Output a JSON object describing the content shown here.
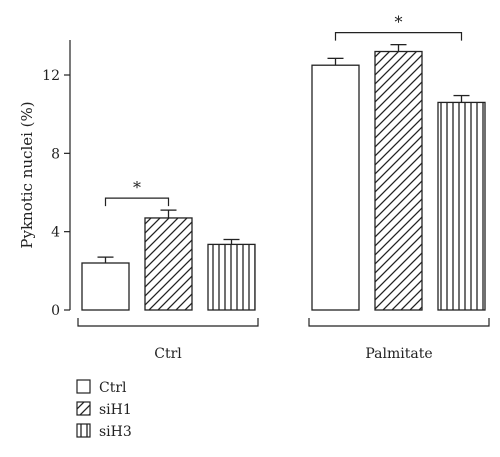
{
  "chart_data": {
    "type": "bar",
    "ylabel": "Pyknotic nuclei (%)",
    "ylim": [
      0,
      14
    ],
    "yticks": [
      0,
      4,
      8,
      12
    ],
    "groups": [
      "Ctrl",
      "Palmitate"
    ],
    "series": [
      {
        "name": "Ctrl",
        "pattern": "blank",
        "values": [
          2.4,
          12.5
        ],
        "errors": [
          0.3,
          0.35
        ]
      },
      {
        "name": "siH1",
        "pattern": "diagonal-hatch",
        "values": [
          4.7,
          13.2
        ],
        "errors": [
          0.4,
          0.35
        ]
      },
      {
        "name": "siH3",
        "pattern": "vertical-lines",
        "values": [
          3.35,
          10.6
        ],
        "errors": [
          0.25,
          0.35
        ]
      }
    ],
    "significance": [
      {
        "group": "Ctrl",
        "from_series": 0,
        "to_series": 1,
        "label": "*"
      },
      {
        "group": "Palmitate",
        "from_series": 0,
        "to_series": 2,
        "label": "*"
      }
    ],
    "legend": {
      "placement": "bottom-left",
      "entries": [
        "Ctrl",
        "siH1",
        "siH3"
      ]
    },
    "grid": false
  }
}
